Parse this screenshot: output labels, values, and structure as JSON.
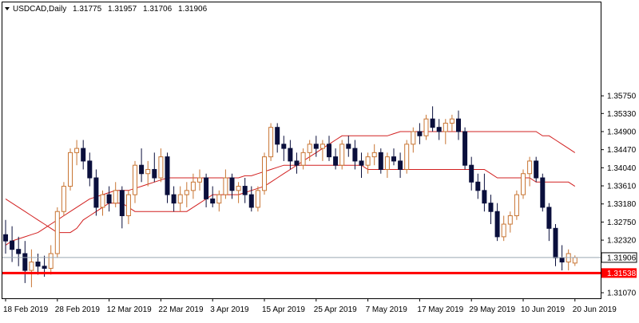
{
  "header": {
    "symbol": "USDCAD,Daily",
    "open": "1.31775",
    "high": "1.31957",
    "low": "1.31706",
    "close": "1.31906"
  },
  "colors": {
    "bull_body": "#ffffff",
    "bull_outline": "#c87533",
    "bear_body": "#0a0f3c",
    "ma_fast": "#d22020",
    "ma_slow": "#d22020",
    "support_line": "#ff0000",
    "current_price_line": "#9aa6b2",
    "support_label_bg": "#ff0000",
    "grid": "#000000"
  },
  "chart_data": {
    "type": "candlestick",
    "title": "USDCAD,Daily",
    "ylim": [
      1.309,
      1.378
    ],
    "y_ticks": [
      "1.35750",
      "1.35330",
      "1.34900",
      "1.34470",
      "1.34040",
      "1.33610",
      "1.33180",
      "1.32750",
      "1.32320",
      "1.31906",
      "1.31538",
      "1.31070"
    ],
    "x_ticks": [
      {
        "index": 0,
        "label": "18 Feb 2019"
      },
      {
        "index": 8,
        "label": "28 Feb 2019"
      },
      {
        "index": 16,
        "label": "12 Mar 2019"
      },
      {
        "index": 24,
        "label": "22 Mar 2019"
      },
      {
        "index": 32,
        "label": "3 Apr 2019"
      },
      {
        "index": 40,
        "label": "15 Apr 2019"
      },
      {
        "index": 48,
        "label": "25 Apr 2019"
      },
      {
        "index": 56,
        "label": "7 May 2019"
      },
      {
        "index": 64,
        "label": "17 May 2019"
      },
      {
        "index": 72,
        "label": "29 May 2019"
      },
      {
        "index": 80,
        "label": "10 Jun 2019"
      },
      {
        "index": 88,
        "label": "20 Jun 2019"
      }
    ],
    "current_price": 1.31906,
    "current_price_label": "1.31906",
    "support_level": 1.31538,
    "support_label": "1.31538",
    "candles": [
      [
        1.3245,
        1.328,
        1.32,
        1.323
      ],
      [
        1.323,
        1.3265,
        1.318,
        1.321
      ],
      [
        1.321,
        1.324,
        1.317,
        1.32
      ],
      [
        1.32,
        1.323,
        1.313,
        1.316
      ],
      [
        1.316,
        1.321,
        1.312,
        1.318
      ],
      [
        1.318,
        1.32,
        1.315,
        1.317
      ],
      [
        1.317,
        1.3195,
        1.3145,
        1.3165
      ],
      [
        1.3165,
        1.322,
        1.315,
        1.32
      ],
      [
        1.32,
        1.331,
        1.319,
        1.33
      ],
      [
        1.33,
        1.337,
        1.329,
        1.336
      ],
      [
        1.336,
        1.345,
        1.335,
        1.344
      ],
      [
        1.344,
        1.347,
        1.341,
        1.345
      ],
      [
        1.345,
        1.347,
        1.34,
        1.342
      ],
      [
        1.342,
        1.344,
        1.336,
        1.338
      ],
      [
        1.338,
        1.34,
        1.329,
        1.331
      ],
      [
        1.331,
        1.335,
        1.329,
        1.334
      ],
      [
        1.334,
        1.336,
        1.33,
        1.332
      ],
      [
        1.332,
        1.337,
        1.331,
        1.335
      ],
      [
        1.335,
        1.336,
        1.326,
        1.329
      ],
      [
        1.329,
        1.335,
        1.327,
        1.334
      ],
      [
        1.334,
        1.342,
        1.332,
        1.341
      ],
      [
        1.341,
        1.345,
        1.337,
        1.339
      ],
      [
        1.339,
        1.342,
        1.336,
        1.34
      ],
      [
        1.34,
        1.344,
        1.337,
        1.338
      ],
      [
        1.338,
        1.345,
        1.337,
        1.343
      ],
      [
        1.343,
        1.344,
        1.332,
        1.334
      ],
      [
        1.334,
        1.336,
        1.33,
        1.332
      ],
      [
        1.332,
        1.336,
        1.33,
        1.334
      ],
      [
        1.334,
        1.337,
        1.331,
        1.335
      ],
      [
        1.335,
        1.339,
        1.333,
        1.337
      ],
      [
        1.337,
        1.34,
        1.335,
        1.338
      ],
      [
        1.338,
        1.339,
        1.331,
        1.333
      ],
      [
        1.333,
        1.336,
        1.331,
        1.332
      ],
      [
        1.332,
        1.335,
        1.33,
        1.334
      ],
      [
        1.334,
        1.34,
        1.333,
        1.338
      ],
      [
        1.338,
        1.339,
        1.333,
        1.335
      ],
      [
        1.335,
        1.337,
        1.332,
        1.336
      ],
      [
        1.336,
        1.338,
        1.332,
        1.334
      ],
      [
        1.334,
        1.336,
        1.33,
        1.331
      ],
      [
        1.331,
        1.336,
        1.33,
        1.335
      ],
      [
        1.335,
        1.344,
        1.334,
        1.343
      ],
      [
        1.343,
        1.351,
        1.342,
        1.35
      ],
      [
        1.35,
        1.351,
        1.344,
        1.346
      ],
      [
        1.346,
        1.348,
        1.342,
        1.345
      ],
      [
        1.345,
        1.347,
        1.34,
        1.342
      ],
      [
        1.342,
        1.344,
        1.339,
        1.341
      ],
      [
        1.341,
        1.345,
        1.34,
        1.344
      ],
      [
        1.344,
        1.347,
        1.342,
        1.346
      ],
      [
        1.346,
        1.348,
        1.343,
        1.345
      ],
      [
        1.345,
        1.347,
        1.342,
        1.346
      ],
      [
        1.346,
        1.348,
        1.342,
        1.343
      ],
      [
        1.343,
        1.345,
        1.34,
        1.341
      ],
      [
        1.341,
        1.347,
        1.34,
        1.346
      ],
      [
        1.346,
        1.348,
        1.343,
        1.345
      ],
      [
        1.345,
        1.347,
        1.34,
        1.342
      ],
      [
        1.342,
        1.344,
        1.338,
        1.341
      ],
      [
        1.341,
        1.344,
        1.339,
        1.343
      ],
      [
        1.343,
        1.346,
        1.341,
        1.344
      ],
      [
        1.344,
        1.345,
        1.339,
        1.34
      ],
      [
        1.34,
        1.344,
        1.338,
        1.343
      ],
      [
        1.343,
        1.345,
        1.341,
        1.342
      ],
      [
        1.342,
        1.344,
        1.338,
        1.34
      ],
      [
        1.34,
        1.347,
        1.339,
        1.346
      ],
      [
        1.346,
        1.35,
        1.344,
        1.349
      ],
      [
        1.349,
        1.351,
        1.346,
        1.348
      ],
      [
        1.348,
        1.353,
        1.347,
        1.352
      ],
      [
        1.352,
        1.355,
        1.349,
        1.35
      ],
      [
        1.35,
        1.352,
        1.347,
        1.349
      ],
      [
        1.349,
        1.352,
        1.346,
        1.351
      ],
      [
        1.351,
        1.353,
        1.349,
        1.352
      ],
      [
        1.352,
        1.354,
        1.347,
        1.349
      ],
      [
        1.349,
        1.35,
        1.34,
        1.341
      ],
      [
        1.341,
        1.343,
        1.335,
        1.337
      ],
      [
        1.337,
        1.339,
        1.333,
        1.335
      ],
      [
        1.335,
        1.339,
        1.33,
        1.332
      ],
      [
        1.332,
        1.334,
        1.327,
        1.33
      ],
      [
        1.33,
        1.332,
        1.323,
        1.324
      ],
      [
        1.324,
        1.329,
        1.323,
        1.327
      ],
      [
        1.327,
        1.33,
        1.325,
        1.329
      ],
      [
        1.329,
        1.335,
        1.328,
        1.334
      ],
      [
        1.334,
        1.34,
        1.333,
        1.339
      ],
      [
        1.339,
        1.343,
        1.336,
        1.342
      ],
      [
        1.342,
        1.343,
        1.337,
        1.338
      ],
      [
        1.338,
        1.339,
        1.33,
        1.331
      ],
      [
        1.331,
        1.332,
        1.323,
        1.326
      ],
      [
        1.326,
        1.327,
        1.317,
        1.319
      ],
      [
        1.319,
        1.322,
        1.316,
        1.318
      ],
      [
        1.318,
        1.321,
        1.316,
        1.32
      ],
      [
        1.31775,
        1.31957,
        1.31706,
        1.31906
      ]
    ],
    "series": [
      {
        "values": [
          1.322,
          1.323,
          1.3235,
          1.324,
          1.3245,
          1.325,
          1.326,
          1.327,
          1.328,
          1.329,
          1.33,
          1.331,
          1.332,
          1.333,
          1.3335,
          1.334,
          1.3345,
          1.335,
          1.335,
          1.335,
          1.3355,
          1.336,
          1.3365,
          1.337,
          1.3375,
          1.338,
          1.338,
          1.338,
          1.338,
          1.338,
          1.338,
          1.338,
          1.338,
          1.338,
          1.338,
          1.338,
          1.338,
          1.3385,
          1.3385,
          1.339,
          1.3395,
          1.34,
          1.3405,
          1.341,
          1.341,
          1.341,
          1.341,
          1.341,
          1.341,
          1.341,
          1.341,
          1.341,
          1.341,
          1.341,
          1.341,
          1.341,
          1.34,
          1.34,
          1.34,
          1.34,
          1.34,
          1.34,
          1.34,
          1.34,
          1.34,
          1.34,
          1.34,
          1.34,
          1.34,
          1.34,
          1.34,
          1.34,
          1.34,
          1.34,
          1.34,
          1.339,
          1.338,
          1.338,
          1.338,
          1.338,
          1.338,
          1.338,
          1.337,
          1.337,
          1.337,
          1.337,
          1.337,
          1.337,
          1.336
        ]
      },
      {
        "values": [
          1.333,
          1.332,
          1.331,
          1.33,
          1.329,
          1.328,
          1.327,
          1.326,
          1.325,
          1.325,
          1.325,
          1.326,
          1.328,
          1.329,
          1.33,
          1.331,
          1.332,
          1.332,
          1.332,
          1.331,
          1.33,
          1.33,
          1.33,
          1.33,
          1.33,
          1.33,
          1.33,
          1.33,
          1.33,
          1.331,
          1.332,
          1.333,
          1.334,
          1.334,
          1.334,
          1.334,
          1.334,
          1.3345,
          1.335,
          1.3355,
          1.336,
          1.337,
          1.338,
          1.339,
          1.34,
          1.341,
          1.342,
          1.343,
          1.344,
          1.345,
          1.346,
          1.347,
          1.348,
          1.348,
          1.348,
          1.348,
          1.348,
          1.348,
          1.348,
          1.348,
          1.3485,
          1.349,
          1.349,
          1.349,
          1.349,
          1.349,
          1.349,
          1.349,
          1.349,
          1.349,
          1.349,
          1.349,
          1.349,
          1.349,
          1.349,
          1.349,
          1.349,
          1.349,
          1.349,
          1.349,
          1.349,
          1.349,
          1.349,
          1.348,
          1.348,
          1.347,
          1.346,
          1.345,
          1.344
        ]
      }
    ]
  }
}
